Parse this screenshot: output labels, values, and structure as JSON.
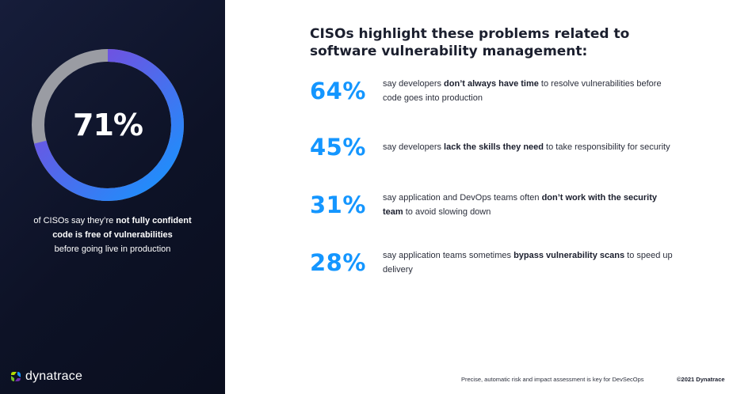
{
  "left": {
    "percent": "71%",
    "progress": 0.71,
    "caption": [
      {
        "pre": "of CISOs say they’re ",
        "bold": "not fully confident",
        "post": ""
      },
      {
        "pre": "",
        "bold": "code is free of vulnerabilities",
        "post": ""
      },
      {
        "pre": "before going live in production",
        "bold": "",
        "post": ""
      }
    ],
    "colors": {
      "ring_start": "#1496ff",
      "ring_end": "#8a3ed8",
      "track": "#9a9ca3"
    }
  },
  "logo": {
    "text": "dynatrace",
    "icon": "dynatrace-logo-icon"
  },
  "heading": "CISOs highlight these problems related to software vulnerability management:",
  "stats": [
    {
      "percent": "64%",
      "parts": [
        {
          "t": "say developers ",
          "b": false
        },
        {
          "t": "don’t always have time",
          "b": true
        },
        {
          "t": " to resolve vulnerabilities before code goes into production",
          "b": false
        }
      ]
    },
    {
      "percent": "45%",
      "parts": [
        {
          "t": "say developers ",
          "b": false
        },
        {
          "t": "lack the skills they need",
          "b": true
        },
        {
          "t": " to take responsibility for security",
          "b": false
        }
      ]
    },
    {
      "percent": "31%",
      "parts": [
        {
          "t": "say application and DevOps teams often ",
          "b": false
        },
        {
          "t": "don’t work with the security team",
          "b": true
        },
        {
          "t": " to avoid slowing down",
          "b": false
        }
      ]
    },
    {
      "percent": "28%",
      "parts": [
        {
          "t": "say application teams sometimes ",
          "b": false
        },
        {
          "t": "bypass vulnerability scans",
          "b": true
        },
        {
          "t": " to speed up delivery",
          "b": false
        }
      ]
    }
  ],
  "footer": {
    "note": "Precise, automatic risk and impact assessment is key for DevSecOps",
    "copyright": "©2021 Dynatrace"
  },
  "accent": "#1496ff"
}
